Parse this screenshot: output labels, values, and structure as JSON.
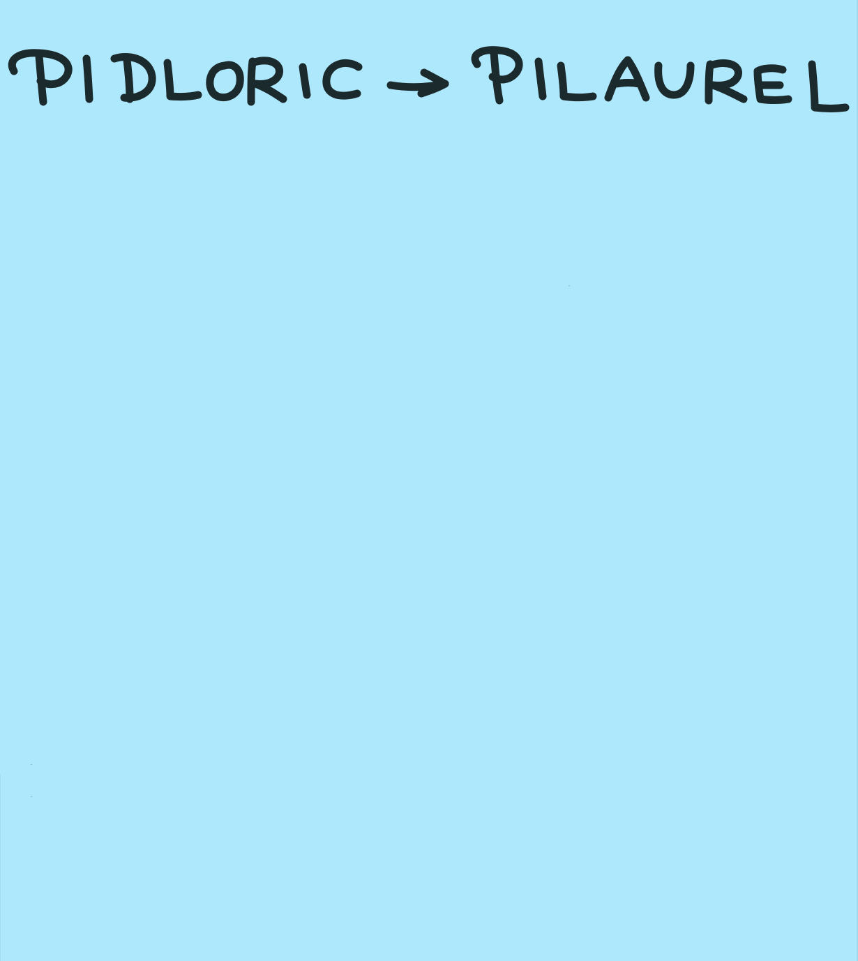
{
  "note": {
    "background_color": "#aee8fd",
    "ink_color": "#1b2a2c",
    "from_word": "PIDLORIC",
    "arrow": "→",
    "to_word": "PILAUREL"
  }
}
